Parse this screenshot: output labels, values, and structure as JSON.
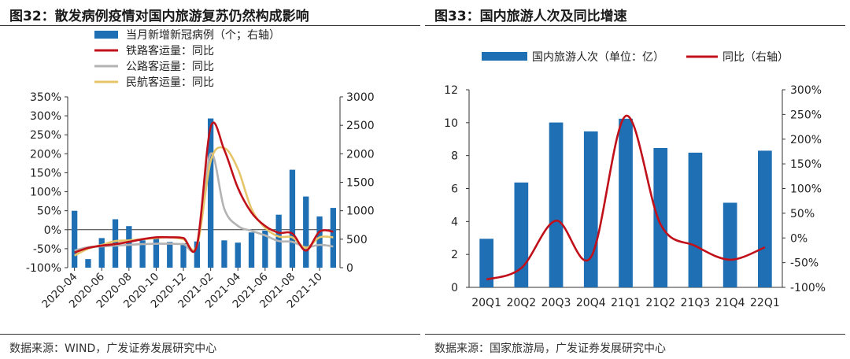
{
  "chart_data": [
    {
      "type": "bar+line",
      "title": "图32：散发病例疫情对国内旅游复苏仍然构成影响",
      "source": "数据来源：WIND，广发证券发展研究中心",
      "x_tick_labels": [
        "2020-04",
        "2020-06",
        "2020-08",
        "2020-10",
        "2020-12",
        "2021-02",
        "2021-04",
        "2021-06",
        "2021-08",
        "2021-10"
      ],
      "y_left": {
        "ticks": [
          "-100%",
          "-50%",
          "0%",
          "50%",
          "100%",
          "150%",
          "200%",
          "250%",
          "300%",
          "350%"
        ],
        "range": [
          -100,
          350
        ],
        "unit": "%"
      },
      "y_right": {
        "ticks": [
          "0",
          "500",
          "1000",
          "1500",
          "2000",
          "2500",
          "3000"
        ],
        "range": [
          0,
          3000
        ]
      },
      "legend": [
        "当月新增新冠病例（个；右轴）",
        "铁路客运量：同比",
        "公路客运量：同比",
        "民航客运量：同比"
      ],
      "colors": {
        "bar": "#1f6fb4",
        "rail": "#c0101a",
        "road": "#b3b3b3",
        "air": "#e6c56a"
      },
      "bars": {
        "name": "当月新增新冠病例（个；右轴）",
        "x": [
          0,
          1,
          2,
          3,
          4,
          5,
          6,
          7,
          8,
          9,
          10,
          11,
          12,
          13,
          14,
          15,
          16,
          17,
          18,
          19
        ],
        "values": [
          1000,
          150,
          520,
          850,
          730,
          480,
          530,
          450,
          430,
          460,
          2620,
          480,
          440,
          620,
          650,
          930,
          1720,
          1250,
          900,
          1050
        ]
      },
      "lines": [
        {
          "name": "铁路客运量：同比",
          "x": [
            0,
            1,
            2,
            3,
            4,
            5,
            6,
            7,
            8,
            9,
            10,
            11,
            12,
            13,
            14,
            15,
            16,
            17,
            18,
            19
          ],
          "values": [
            -60,
            -48,
            -42,
            -38,
            -32,
            -25,
            -20,
            -20,
            -22,
            -40,
            270,
            210,
            110,
            45,
            10,
            -8,
            -10,
            -55,
            -5,
            -5
          ]
        },
        {
          "name": "公路客运量：同比",
          "x": [
            0,
            1,
            2,
            3,
            4,
            5,
            6,
            7,
            8,
            9,
            10,
            11,
            12,
            13,
            14,
            15,
            16,
            17,
            18,
            19
          ],
          "values": [
            -55,
            -46,
            -44,
            -42,
            -40,
            -38,
            -37,
            -37,
            -38,
            -40,
            200,
            55,
            10,
            -3,
            -15,
            -30,
            -32,
            -46,
            -40,
            -44
          ]
        },
        {
          "name": "民航客运量：同比",
          "x": [
            0,
            1,
            2,
            3,
            4,
            5,
            6,
            7,
            8,
            9,
            10,
            11,
            12,
            13,
            14,
            15,
            16,
            17,
            18,
            19
          ],
          "values": [
            -68,
            -50,
            -40,
            -30,
            -28,
            -25,
            -22,
            -20,
            -25,
            -42,
            180,
            215,
            160,
            55,
            5,
            -18,
            -20,
            -48,
            -20,
            -20
          ]
        }
      ]
    },
    {
      "type": "bar+line",
      "title": "图33：国内旅游人次及同比增速",
      "source": "数据来源：国家旅游局，广发证券发展研究中心",
      "categories": [
        "20Q1",
        "20Q2",
        "20Q3",
        "20Q4",
        "21Q1",
        "21Q2",
        "21Q3",
        "21Q4",
        "22Q1"
      ],
      "y_left": {
        "ticks": [
          "0",
          "2",
          "4",
          "6",
          "8",
          "10",
          "12"
        ],
        "range": [
          0,
          12
        ]
      },
      "y_right": {
        "ticks": [
          "-100%",
          "-50%",
          "0%",
          "50%",
          "100%",
          "150%",
          "200%",
          "250%",
          "300%"
        ],
        "range": [
          -100,
          300
        ],
        "unit": "%"
      },
      "legend": [
        "国内旅游人次（单位：亿）",
        "同比（右轴）"
      ],
      "colors": {
        "bar": "#1f6fb4",
        "line": "#c0101a"
      },
      "series": [
        {
          "name": "国内旅游人次（单位：亿）",
          "type": "bar",
          "values": [
            2.95,
            6.37,
            10.01,
            9.47,
            10.24,
            8.46,
            8.18,
            5.14,
            8.3
          ]
        },
        {
          "name": "同比（右轴）",
          "type": "line",
          "values": [
            -84,
            -61,
            35,
            -39,
            247,
            28,
            -16,
            -44,
            -19
          ]
        }
      ]
    }
  ]
}
